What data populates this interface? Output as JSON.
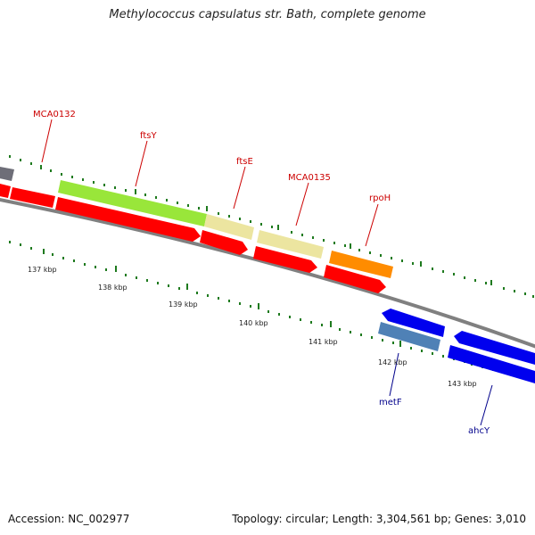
{
  "title": "Methylococcus capsulatus str. Bath, complete genome",
  "footer": {
    "accession": "Accession: NC_002977",
    "topology": "Topology: circular; Length: 3,304,561 bp; Genes: 3,010"
  },
  "colors": {
    "backbone": "#808080",
    "tick": "#1e7a1e",
    "label_forward": "#cc0000",
    "label_reverse": "#00008b",
    "red_gene": "#ff0000",
    "green_gene": "#99e63a",
    "khaki_gene": "#ece5a0",
    "orange_gene": "#ff8c00",
    "blue_gene": "#0000ee",
    "steelblue_gene": "#4f81b6",
    "grey_gene": "#6e6e78"
  },
  "scale_labels": [
    "137 kbp",
    "138 kbp",
    "139 kbp",
    "140 kbp",
    "141 kbp",
    "142 kbp",
    "143 kbp"
  ],
  "gene_labels": [
    {
      "name": "MCA0132",
      "strand": "forward"
    },
    {
      "name": "ftsY",
      "strand": "forward"
    },
    {
      "name": "ftsE",
      "strand": "forward"
    },
    {
      "name": "MCA0135",
      "strand": "forward"
    },
    {
      "name": "rpoH",
      "strand": "forward"
    },
    {
      "name": "metF",
      "strand": "reverse"
    },
    {
      "name": "ahcY",
      "strand": "reverse"
    }
  ]
}
